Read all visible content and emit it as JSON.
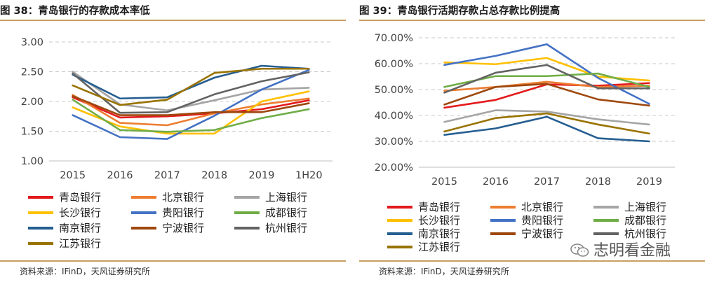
{
  "chart_data": [
    {
      "type": "line",
      "title": "图 38：青岛银行的存款成本率低",
      "source": "资料来源：IFinD，天风证券研究所",
      "categories": [
        "2015",
        "2016",
        "2017",
        "2018",
        "2019",
        "1H20"
      ],
      "y_ticks": [
        "3.00",
        "2.50",
        "2.00",
        "1.50",
        "1.00"
      ],
      "ylim": [
        1.0,
        3.0
      ],
      "grid": "horizontal dashed",
      "legend_position": "bottom",
      "series": [
        {
          "name": "青岛银行",
          "color": "#e31a1c",
          "values": [
            2.07,
            1.73,
            1.75,
            1.8,
            1.87,
            2.02
          ]
        },
        {
          "name": "北京银行",
          "color": "#ed7d31",
          "values": [
            2.11,
            1.64,
            1.6,
            1.8,
            1.95,
            2.05
          ]
        },
        {
          "name": "上海银行",
          "color": "#a5a5a5",
          "values": [
            2.5,
            1.95,
            1.85,
            2.02,
            2.2,
            2.23
          ]
        },
        {
          "name": "长沙银行",
          "color": "#ffc000",
          "values": [
            1.9,
            1.58,
            1.46,
            1.46,
            2.0,
            2.17
          ]
        },
        {
          "name": "贵阳银行",
          "color": "#4472c4",
          "values": [
            1.77,
            1.4,
            1.37,
            1.76,
            2.2,
            2.53
          ]
        },
        {
          "name": "成都银行",
          "color": "#70ad47",
          "values": [
            2.03,
            1.52,
            1.49,
            1.52,
            1.72,
            1.87
          ]
        },
        {
          "name": "南京银行",
          "color": "#255e91",
          "values": [
            2.45,
            2.05,
            2.07,
            2.4,
            2.6,
            2.55
          ]
        },
        {
          "name": "宁波银行",
          "color": "#9e480e",
          "values": [
            2.09,
            1.77,
            1.77,
            1.82,
            1.82,
            1.97
          ]
        },
        {
          "name": "杭州银行",
          "color": "#636363",
          "values": [
            2.47,
            1.81,
            1.82,
            2.12,
            2.34,
            2.49
          ]
        },
        {
          "name": "江苏银行",
          "color": "#997300",
          "values": [
            2.27,
            1.94,
            2.03,
            2.48,
            2.55,
            2.55
          ]
        }
      ]
    },
    {
      "type": "line",
      "title": "图 39：青岛银行活期存款占总存款比例提高",
      "source": "资料来源：IFinD，天风证券研究所",
      "categories": [
        "2015",
        "2016",
        "2017",
        "2018",
        "2019"
      ],
      "y_ticks": [
        "70.00%",
        "60.00%",
        "50.00%",
        "40.00%",
        "30.00%",
        "20.00%"
      ],
      "ylim": [
        20,
        70
      ],
      "grid": "horizontal dashed",
      "legend_position": "bottom",
      "series": [
        {
          "name": "青岛银行",
          "color": "#e31a1c",
          "values": [
            43.0,
            46.0,
            52.0,
            51.5,
            52.5
          ]
        },
        {
          "name": "北京银行",
          "color": "#ed7d31",
          "values": [
            49.5,
            51.0,
            53.0,
            51.0,
            51.5
          ]
        },
        {
          "name": "上海银行",
          "color": "#a5a5a5",
          "values": [
            37.5,
            42.0,
            41.5,
            38.5,
            36.5
          ]
        },
        {
          "name": "长沙银行",
          "color": "#ffc000",
          "values": [
            60.5,
            59.8,
            62.2,
            55.0,
            53.5
          ]
        },
        {
          "name": "贵阳银行",
          "color": "#4472c4",
          "values": [
            59.5,
            63.0,
            67.5,
            54.5,
            44.5
          ]
        },
        {
          "name": "成都银行",
          "color": "#70ad47",
          "values": [
            51.0,
            55.2,
            55.2,
            56.2,
            51.0
          ]
        },
        {
          "name": "南京银行",
          "color": "#255e91",
          "values": [
            32.5,
            35.0,
            39.5,
            31.2,
            30.0
          ]
        },
        {
          "name": "宁波银行",
          "color": "#9e480e",
          "values": [
            44.2,
            51.0,
            52.2,
            46.2,
            43.8
          ]
        },
        {
          "name": "杭州银行",
          "color": "#636363",
          "values": [
            48.8,
            56.5,
            59.5,
            50.5,
            50.5
          ]
        },
        {
          "name": "江苏银行",
          "color": "#997300",
          "values": [
            33.8,
            39.0,
            40.8,
            36.5,
            33.0
          ]
        }
      ]
    }
  ],
  "watermark": "志明看金融"
}
